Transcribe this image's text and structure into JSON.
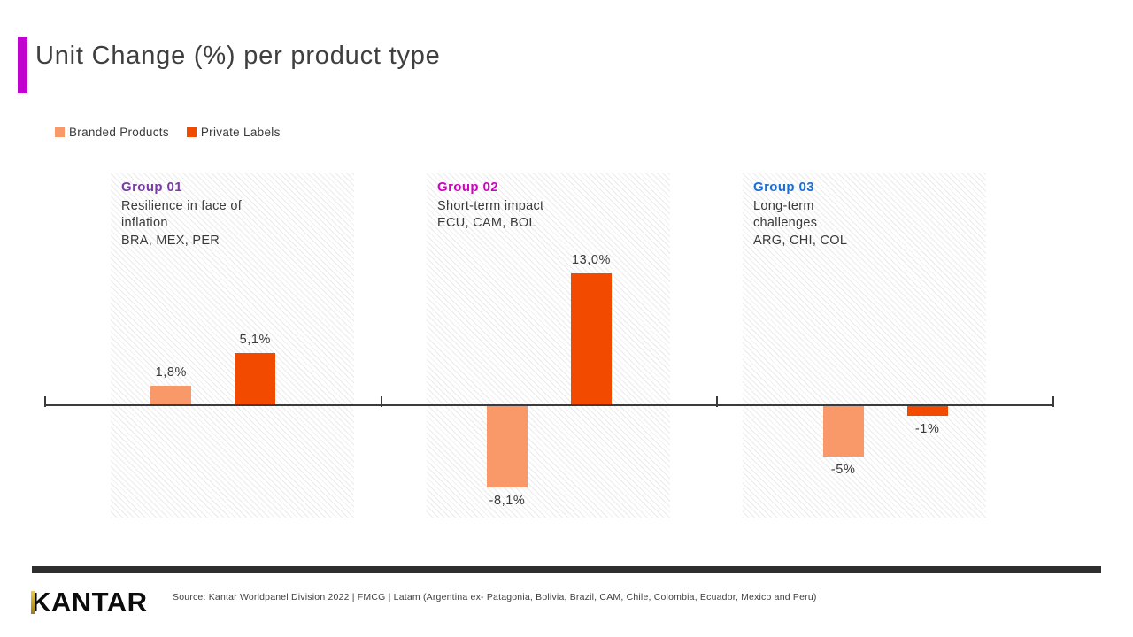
{
  "slide": {
    "title": "Unit Change (%) per product type",
    "accent_color": "#C003CE"
  },
  "legend": [
    {
      "label": "Branded Products",
      "color": "#F99868"
    },
    {
      "label": "Private Labels",
      "color": "#F24B00"
    }
  ],
  "groups": [
    {
      "label": "Group 01",
      "color": "#7A3BA5",
      "lines": [
        "Resilience in face of",
        "inflation",
        "BRA, MEX, PER"
      ]
    },
    {
      "label": "Group 02",
      "color": "#D400C4",
      "lines": [
        "Short-term impact",
        "ECU, CAM, BOL"
      ]
    },
    {
      "label": "Group 03",
      "color": "#1A6FD5",
      "lines": [
        "Long-term",
        "challenges",
        "ARG, CHI, COL"
      ]
    }
  ],
  "chart_data": {
    "type": "bar",
    "title": "Unit Change (%) per product type",
    "categories": [
      "Group 01",
      "Group 02",
      "Group 03"
    ],
    "series": [
      {
        "name": "Branded Products",
        "color": "#F99868",
        "values": [
          1.8,
          -8.1,
          -5
        ],
        "labels": [
          "1,8%",
          "-8,1%",
          "-5%"
        ]
      },
      {
        "name": "Private Labels",
        "color": "#F24B00",
        "values": [
          5.1,
          13.0,
          -1
        ],
        "labels": [
          "5,1%",
          "13,0%",
          "-1%"
        ]
      }
    ],
    "xlabel": "",
    "ylabel": "Unit Change (%)",
    "ylim": [
      -10,
      15
    ],
    "grid": false,
    "legend_position": "top-left",
    "value_format": "comma-decimal-percent",
    "baseline": 0
  },
  "footer": {
    "logo_text": "KANTAR",
    "source": "Source: Kantar Worldpanel Division 2022 | FMCG | Latam (Argentina ex- Patagonia, Bolivia, Brazil, CAM, Chile, Colombia, Ecuador, Mexico and Peru)"
  }
}
